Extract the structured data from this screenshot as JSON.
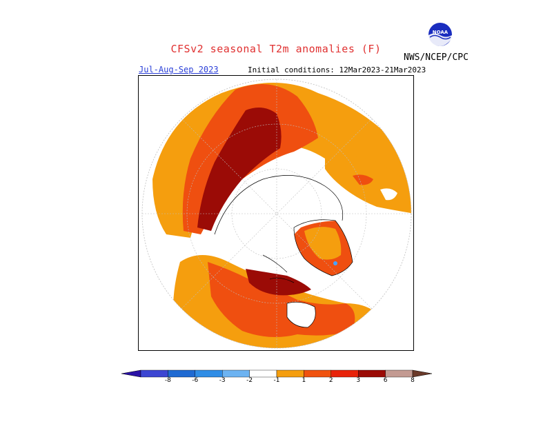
{
  "header": {
    "title": "CFSv2 seasonal T2m anomalies (F)",
    "period": "Jul-Aug-Sep 2023",
    "initial_conditions": "Initial conditions: 12Mar2023-21Mar2023",
    "agency": "NWS/NCEP/CPC",
    "logo_text": "NOAA"
  },
  "colorbar": {
    "ticks": [
      "-8",
      "-6",
      "-3",
      "-2",
      "-1",
      "1",
      "2",
      "3",
      "6",
      "8"
    ],
    "colors": [
      "#2a12a6",
      "#3c46d2",
      "#1f6ad2",
      "#2f8de6",
      "#6cb3f2",
      "#ffffff",
      "#f59e0e",
      "#f0530f",
      "#e8230a",
      "#9b0b06",
      "#c39a92",
      "#6b3a2a"
    ]
  },
  "map_colors": {
    "anomaly_1_2": "#f59e0e",
    "anomaly_2_3": "#ef4f10",
    "anomaly_3_6": "#9b0b06",
    "accent_blue": "#4aa3ff"
  }
}
